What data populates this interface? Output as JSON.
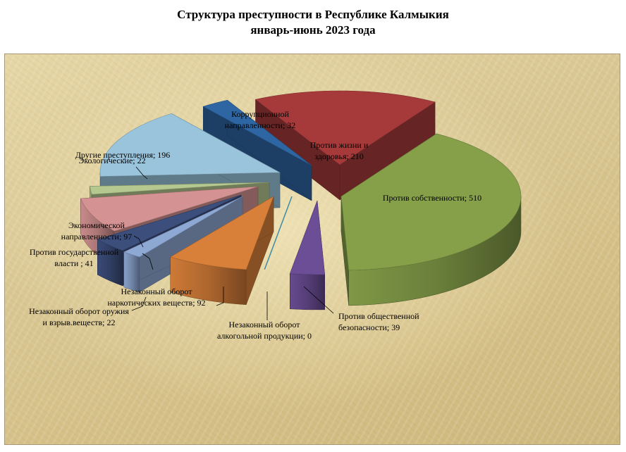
{
  "title": {
    "line1": "Структура преступности в  Республике Калмыкия",
    "line2": "январь-июнь 2023 года"
  },
  "chart_data": {
    "type": "pie",
    "style": "3d-exploded",
    "categories": [
      "Против собственности",
      "Против общественной безопасности",
      "Незаконный оборот алкогольной продукции",
      "Незаконный оборот наркотических  веществ",
      "Незаконный оборот оружия и взрыв.веществ",
      "Против  государственной власти",
      "Экономической направленности",
      "Экологические",
      "Другие преступления",
      "Коррупционной направленности",
      "Против жизни и здоровья"
    ],
    "values": [
      510,
      39,
      0,
      92,
      22,
      41,
      97,
      22,
      196,
      32,
      210
    ],
    "colors": {
      "Против собственности": "#86a04a",
      "Против общественной безопасности": "#6b4e96",
      "Незаконный оборот алкогольной продукции": "#3f8aa6",
      "Незаконный оборот наркотических  веществ": "#d8803a",
      "Незаконный оборот оружия и взрыв.веществ": "#8ea8d4",
      "Против  государственной власти": "#3c4e7c",
      "Экономической направленности": "#d49292",
      "Экологические": "#b4c890",
      "Другие преступления": "#9ac4dc",
      "Коррупционной направленности": "#2e66a4",
      "Против жизни и здоровья": "#a63a3a"
    },
    "labels": [
      {
        "lines": [
          "Против  собственности; 510"
        ]
      },
      {
        "lines": [
          "Против общественной",
          "безопасности; 39"
        ]
      },
      {
        "lines": [
          "Незаконный оборот",
          "алкогольной продукции; 0"
        ]
      },
      {
        "lines": [
          "Незаконный оборот",
          "наркотических  веществ; 92"
        ]
      },
      {
        "lines": [
          "Незаконный оборот оружия",
          "и взрыв.веществ;  22"
        ]
      },
      {
        "lines": [
          "Против  государственной",
          "власти ; 41"
        ]
      },
      {
        "lines": [
          "Экономической",
          "направленности; 97"
        ]
      },
      {
        "lines": [
          "Экологические; 22"
        ]
      },
      {
        "lines": [
          "Другие преступления; 196"
        ]
      },
      {
        "lines": [
          "Коррупционной",
          "направленности; 32"
        ]
      },
      {
        "lines": [
          "Против жизни и",
          "здоровья; 210"
        ]
      }
    ]
  }
}
